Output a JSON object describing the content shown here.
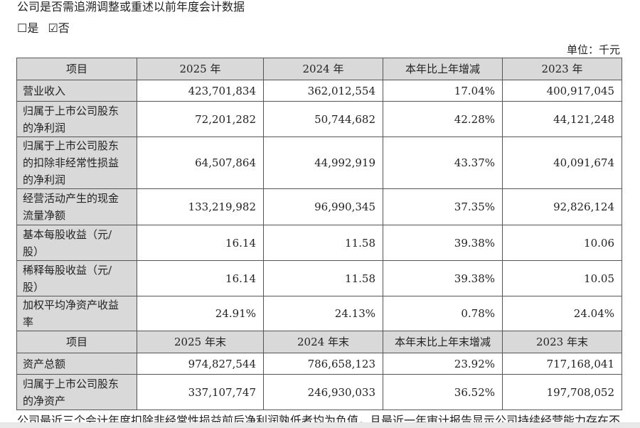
{
  "title": "公司是否需追溯调整或重述以前年度会计数据",
  "choices": {
    "yes": "☐是",
    "no": "☑否"
  },
  "unit": "单位：千元",
  "header1": [
    "项目",
    "2025 年",
    "2024 年",
    "本年比上年增减",
    "2023 年"
  ],
  "rows1": [
    {
      "label": "营业收入",
      "values": [
        "423,701,834",
        "362,012,554",
        "17.04%",
        "400,917,045"
      ]
    },
    {
      "label": "归属于上市公司股东\n的净利润",
      "values": [
        "72,201,282",
        "50,744,682",
        "42.28%",
        "44,121,248"
      ]
    },
    {
      "label": "归属于上市公司股东\n的扣除非经常性损益\n的净利润",
      "values": [
        "64,507,864",
        "44,992,919",
        "43.37%",
        "40,091,674"
      ]
    },
    {
      "label": "经营活动产生的现金\n流量净额",
      "values": [
        "133,219,982",
        "96,990,345",
        "37.35%",
        "92,826,124"
      ]
    },
    {
      "label": "基本每股收益（元/\n股）",
      "values": [
        "16.14",
        "11.58",
        "39.38%",
        "10.06"
      ]
    },
    {
      "label": "稀释每股收益（元/\n股）",
      "values": [
        "16.14",
        "11.58",
        "39.38%",
        "10.05"
      ]
    },
    {
      "label": "加权平均净资产收益\n率",
      "values": [
        "24.91%",
        "24.13%",
        "0.78%",
        "24.04%"
      ]
    }
  ],
  "header2": [
    "项目",
    "2025 年末",
    "2024 年末",
    "本年末比上年末增减",
    "2023 年末"
  ],
  "rows2": [
    {
      "label": "资产总额",
      "values": [
        "974,827,544",
        "786,658,123",
        "23.92%",
        "717,168,041"
      ]
    },
    {
      "label": "归属于上市公司股东\n的净资产",
      "values": [
        "337,107,747",
        "246,930,033",
        "36.52%",
        "197,708,052"
      ]
    }
  ],
  "footer": "公司最近三个会计年度扣除非经常性损益前后净利润孰低者均为负值，且最近一年审计报告显示公司持续经营能力存在不"
}
